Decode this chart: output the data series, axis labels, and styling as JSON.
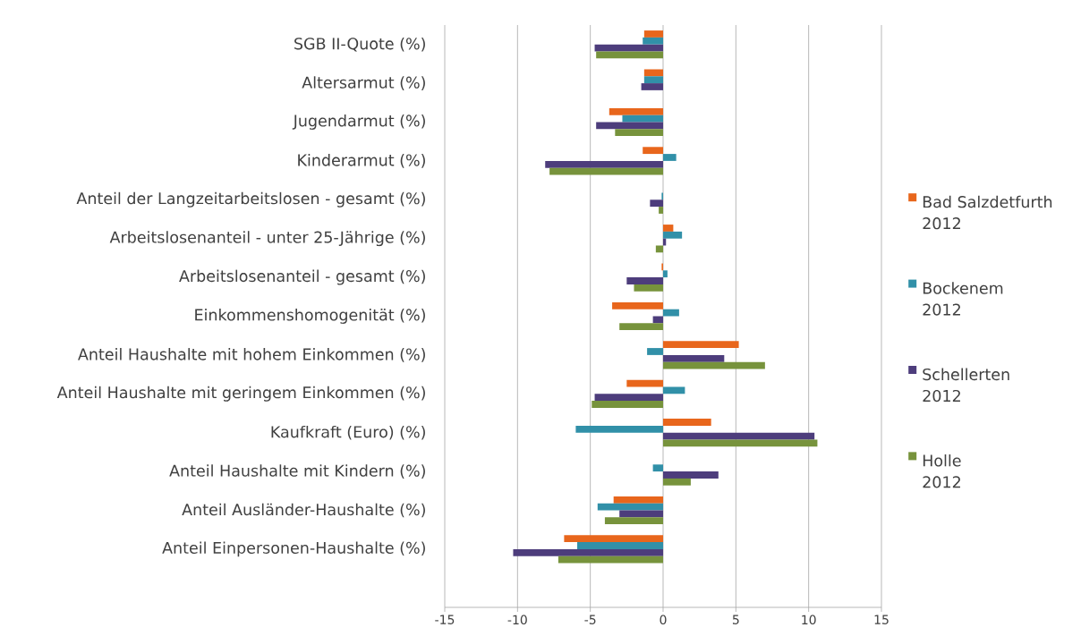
{
  "chart_data": {
    "type": "bar",
    "orientation": "horizontal",
    "categories": [
      "SGB II-Quote (%)",
      "Altersarmut (%)",
      "Jugendarmut (%)",
      "Kinderarmut (%)",
      "Anteil der Langzeitarbeitslosen - gesamt (%)",
      "Arbeitslosenanteil - unter 25-Jährige (%)",
      "Arbeitslosenanteil - gesamt (%)",
      "Einkommenshomogenität (%)",
      "Anteil Haushalte mit hohem Einkommen (%)",
      "Anteil Haushalte mit geringem Einkommen (%)",
      "Kaufkraft (Euro) (%)",
      "Anteil Haushalte mit Kindern (%)",
      "Anteil Ausländer-Haushalte (%)",
      "Anteil Einpersonen-Haushalte (%)"
    ],
    "series": [
      {
        "name": "Bad Salzdetfurth 2012",
        "color": "#e8661c",
        "values": [
          -1.3,
          -1.3,
          -3.7,
          -1.4,
          null,
          0.7,
          -0.1,
          -3.5,
          5.2,
          -2.5,
          3.3,
          null,
          -3.4,
          -6.8
        ]
      },
      {
        "name": "Bockenem 2012",
        "color": "#3190a8",
        "values": [
          -1.4,
          -1.3,
          -2.8,
          0.9,
          -0.1,
          1.3,
          0.3,
          1.1,
          -1.1,
          1.5,
          -6.0,
          -0.7,
          -4.5,
          -5.9
        ]
      },
      {
        "name": "Schellerten 2012",
        "color": "#4d3d7c",
        "values": [
          -4.7,
          -1.5,
          -4.6,
          -8.1,
          -0.9,
          0.2,
          -2.5,
          -0.7,
          4.2,
          -4.7,
          10.4,
          3.8,
          -3.0,
          -10.3
        ]
      },
      {
        "name": "Holle 2012",
        "color": "#77933c",
        "values": [
          -4.6,
          null,
          -3.3,
          -7.8,
          -0.3,
          -0.5,
          -2.0,
          -3.0,
          7.0,
          -4.9,
          10.6,
          1.9,
          -4.0,
          -7.2
        ]
      }
    ],
    "xlim": [
      -15,
      15
    ],
    "xticks": [
      -15,
      -10,
      -5,
      0,
      5,
      10,
      15
    ],
    "grid": "x",
    "legend": "right"
  }
}
